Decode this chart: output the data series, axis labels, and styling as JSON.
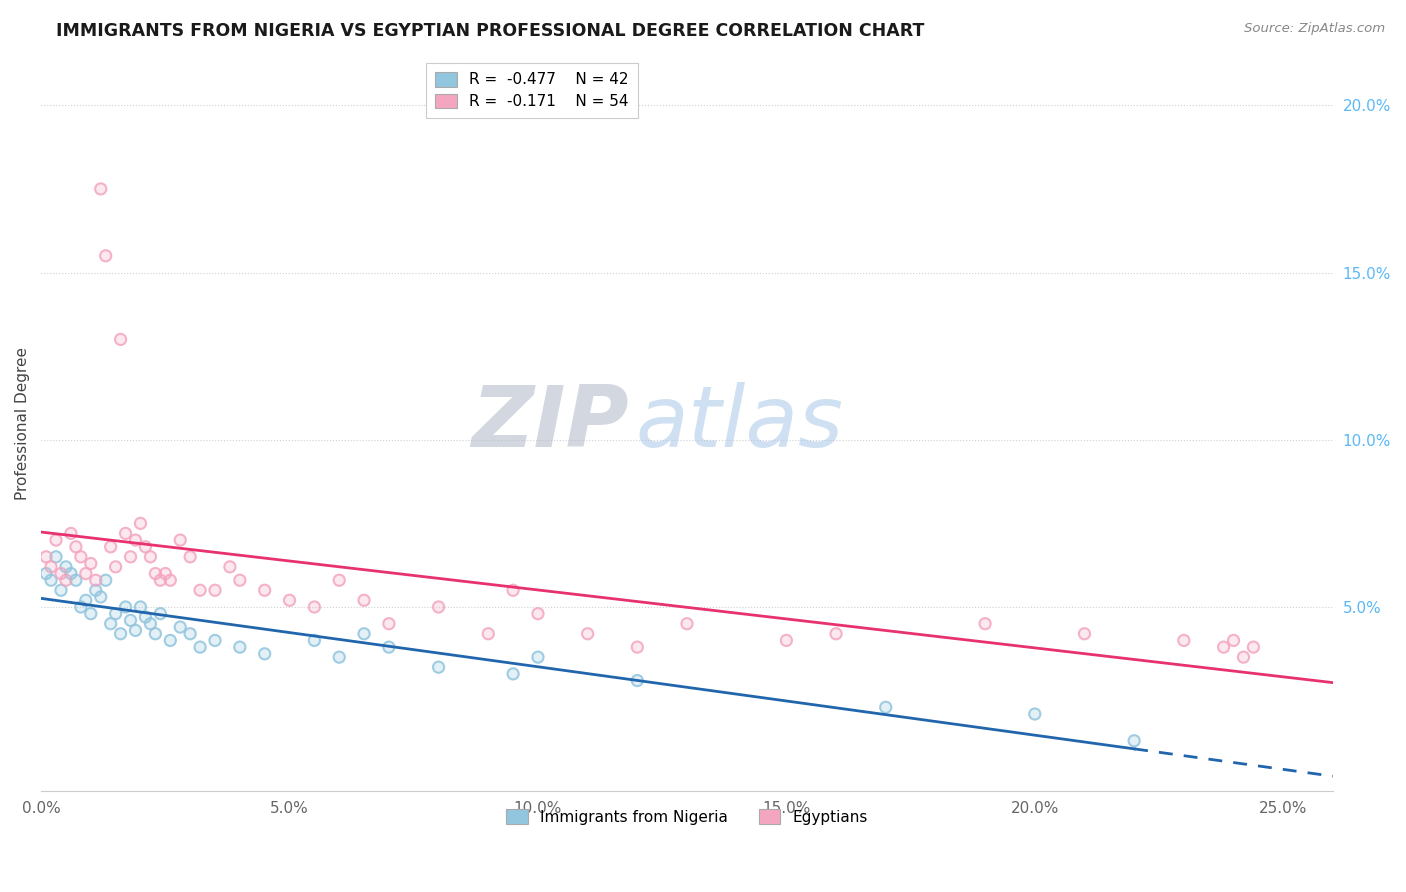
{
  "title": "IMMIGRANTS FROM NIGERIA VS EGYPTIAN PROFESSIONAL DEGREE CORRELATION CHART",
  "source": "Source: ZipAtlas.com",
  "ylabel": "Professional Degree",
  "xlim": [
    0.0,
    0.26
  ],
  "ylim": [
    -0.005,
    0.215
  ],
  "xticks": [
    0.0,
    0.05,
    0.1,
    0.15,
    0.2,
    0.25
  ],
  "yticks_right": [
    0.05,
    0.1,
    0.15,
    0.2
  ],
  "legend_labels": [
    "Immigrants from Nigeria",
    "Egyptians"
  ],
  "legend_R": [
    -0.477,
    -0.171
  ],
  "legend_N": [
    42,
    54
  ],
  "blue_color": "#92c5de",
  "pink_color": "#f4a6c0",
  "blue_line_color": "#2166ac",
  "pink_line_color": "#e8326e",
  "watermark_zip": "#b0b8c8",
  "watermark_atlas": "#a8c8e8",
  "nigeria_x": [
    0.001,
    0.002,
    0.003,
    0.004,
    0.005,
    0.006,
    0.007,
    0.008,
    0.009,
    0.01,
    0.011,
    0.012,
    0.013,
    0.014,
    0.015,
    0.016,
    0.017,
    0.018,
    0.019,
    0.02,
    0.021,
    0.022,
    0.023,
    0.024,
    0.026,
    0.028,
    0.03,
    0.032,
    0.035,
    0.04,
    0.045,
    0.055,
    0.06,
    0.065,
    0.07,
    0.08,
    0.095,
    0.1,
    0.12,
    0.17,
    0.2,
    0.22
  ],
  "nigeria_y": [
    0.06,
    0.058,
    0.065,
    0.055,
    0.062,
    0.06,
    0.058,
    0.05,
    0.052,
    0.048,
    0.055,
    0.053,
    0.058,
    0.045,
    0.048,
    0.042,
    0.05,
    0.046,
    0.043,
    0.05,
    0.047,
    0.045,
    0.042,
    0.048,
    0.04,
    0.044,
    0.042,
    0.038,
    0.04,
    0.038,
    0.036,
    0.04,
    0.035,
    0.042,
    0.038,
    0.032,
    0.03,
    0.035,
    0.028,
    0.02,
    0.018,
    0.01
  ],
  "egypt_x": [
    0.001,
    0.002,
    0.003,
    0.004,
    0.005,
    0.006,
    0.007,
    0.008,
    0.009,
    0.01,
    0.011,
    0.012,
    0.013,
    0.014,
    0.015,
    0.016,
    0.017,
    0.018,
    0.019,
    0.02,
    0.021,
    0.022,
    0.023,
    0.024,
    0.025,
    0.026,
    0.028,
    0.03,
    0.032,
    0.035,
    0.038,
    0.04,
    0.045,
    0.05,
    0.055,
    0.06,
    0.065,
    0.07,
    0.08,
    0.09,
    0.095,
    0.1,
    0.11,
    0.12,
    0.13,
    0.15,
    0.16,
    0.19,
    0.21,
    0.23,
    0.238,
    0.24,
    0.242,
    0.244
  ],
  "egypt_y": [
    0.065,
    0.062,
    0.07,
    0.06,
    0.058,
    0.072,
    0.068,
    0.065,
    0.06,
    0.063,
    0.058,
    0.175,
    0.155,
    0.068,
    0.062,
    0.13,
    0.072,
    0.065,
    0.07,
    0.075,
    0.068,
    0.065,
    0.06,
    0.058,
    0.06,
    0.058,
    0.07,
    0.065,
    0.055,
    0.055,
    0.062,
    0.058,
    0.055,
    0.052,
    0.05,
    0.058,
    0.052,
    0.045,
    0.05,
    0.042,
    0.055,
    0.048,
    0.042,
    0.038,
    0.045,
    0.04,
    0.042,
    0.045,
    0.042,
    0.04,
    0.038,
    0.04,
    0.035,
    0.038
  ]
}
